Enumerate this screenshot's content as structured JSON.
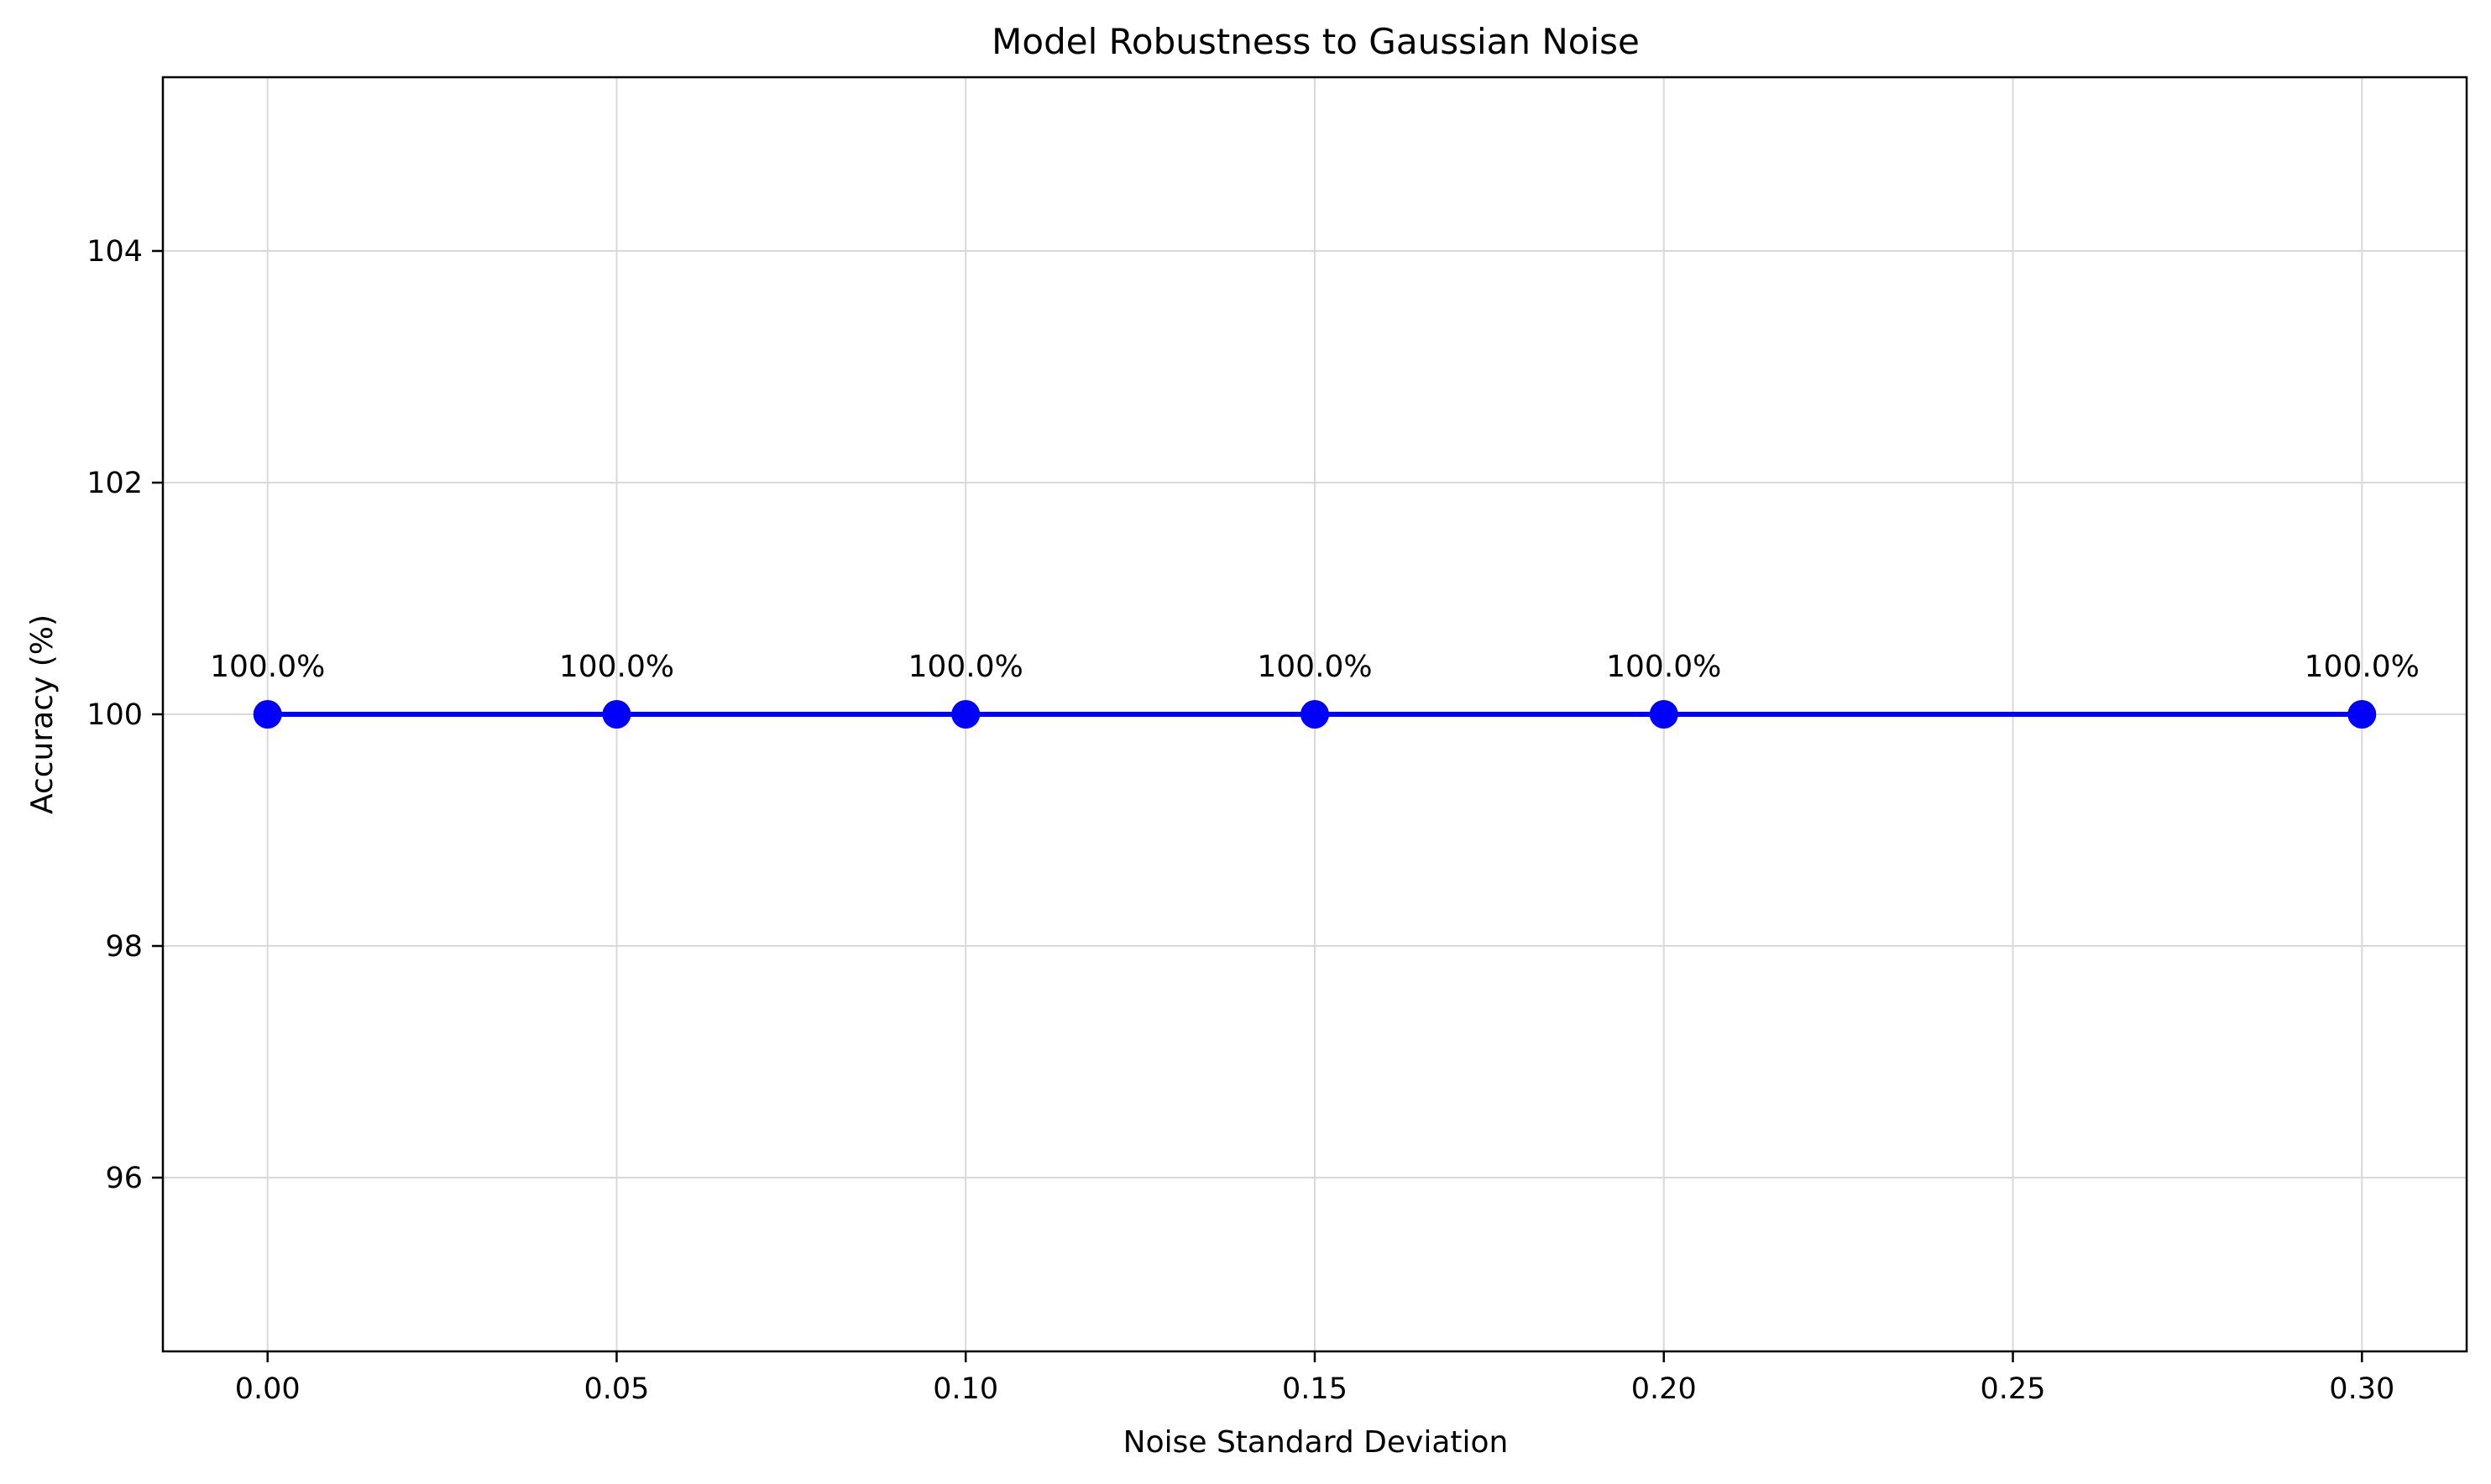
{
  "chart_data": {
    "type": "line",
    "title": "Model Robustness to Gaussian Noise",
    "xlabel": "Noise Standard Deviation",
    "ylabel": "Accuracy (%)",
    "x": [
      0.0,
      0.05,
      0.1,
      0.15,
      0.2,
      0.3
    ],
    "series": [
      {
        "values": [
          100,
          100,
          100,
          100,
          100,
          100
        ],
        "color": "#0000ff",
        "marker": "circle",
        "data_labels": [
          "100.0%",
          "100.0%",
          "100.0%",
          "100.0%",
          "100.0%",
          "100.0%"
        ]
      }
    ],
    "xlim": [
      -0.015,
      0.315
    ],
    "ylim": [
      94.5,
      105.5
    ],
    "xticks": [
      0.0,
      0.05,
      0.1,
      0.15,
      0.2,
      0.25,
      0.3
    ],
    "xtick_labels": [
      "0.00",
      "0.05",
      "0.10",
      "0.15",
      "0.20",
      "0.25",
      "0.30"
    ],
    "yticks": [
      96,
      98,
      100,
      102,
      104
    ],
    "ytick_labels": [
      "96",
      "98",
      "100",
      "102",
      "104"
    ],
    "grid": true,
    "legend": "none"
  }
}
